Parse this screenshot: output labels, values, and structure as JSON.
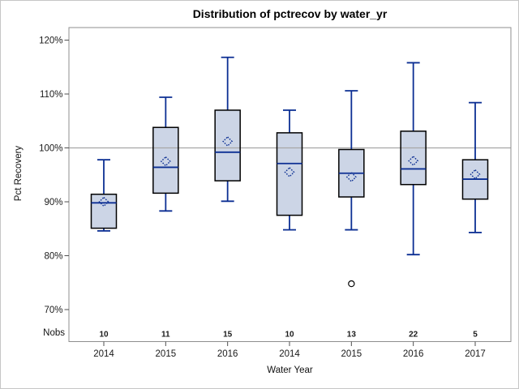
{
  "chart_data": {
    "type": "boxplot",
    "title": "Distribution of pctrecov by water_yr",
    "xlabel": "Water Year",
    "ylabel": "Pct Recovery",
    "nobs_label": "Nobs",
    "y_tick_labels": [
      "120%",
      "110%",
      "100%",
      "90%",
      "80%",
      "70%"
    ],
    "y_tick_values": [
      120,
      110,
      100,
      90,
      80,
      70
    ],
    "ylim": [
      64,
      122.3
    ],
    "reference_line": 100,
    "grid": "reference line at 100% only",
    "legend": "none",
    "categories": [
      "2014",
      "2015",
      "2016",
      "2014",
      "2015",
      "2016",
      "2017"
    ],
    "nobs": [
      10,
      11,
      15,
      10,
      13,
      22,
      5
    ],
    "series": [
      {
        "category": "2014",
        "nobs": 10,
        "whisker_low": 84.6,
        "q1": 85.1,
        "median": 89.8,
        "q3": 91.4,
        "whisker_high": 97.8,
        "mean": 90.0,
        "outliers": []
      },
      {
        "category": "2015",
        "nobs": 11,
        "whisker_low": 88.3,
        "q1": 91.6,
        "median": 96.4,
        "q3": 103.8,
        "whisker_high": 109.4,
        "mean": 97.5,
        "outliers": []
      },
      {
        "category": "2016",
        "nobs": 15,
        "whisker_low": 90.1,
        "q1": 93.9,
        "median": 99.2,
        "q3": 107.0,
        "whisker_high": 116.8,
        "mean": 101.2,
        "outliers": []
      },
      {
        "category": "2014",
        "nobs": 10,
        "whisker_low": 84.8,
        "q1": 87.5,
        "median": 97.1,
        "q3": 102.8,
        "whisker_high": 107.0,
        "mean": 95.5,
        "outliers": []
      },
      {
        "category": "2015",
        "nobs": 13,
        "whisker_low": 84.8,
        "q1": 90.9,
        "median": 95.3,
        "q3": 99.7,
        "whisker_high": 110.6,
        "mean": 94.6,
        "outliers": [
          74.8
        ]
      },
      {
        "category": "2016",
        "nobs": 22,
        "whisker_low": 80.2,
        "q1": 93.2,
        "median": 96.1,
        "q3": 103.1,
        "whisker_high": 115.8,
        "mean": 97.6,
        "outliers": []
      },
      {
        "category": "2017",
        "nobs": 5,
        "whisker_low": 84.3,
        "q1": 90.5,
        "median": 94.2,
        "q3": 97.8,
        "whisker_high": 108.4,
        "mean": 95.1,
        "outliers": []
      }
    ],
    "colors": {
      "box_fill": "#ccd5e6",
      "box_border": "#000000",
      "line": "#0c2f93",
      "reference_line": "#a6a6a6",
      "frame_border": "#8f8f8f",
      "tick": "#4f4f4f",
      "text": "#1a1a1a",
      "outlier_stroke": "#000000",
      "background": "#ffffff"
    }
  }
}
